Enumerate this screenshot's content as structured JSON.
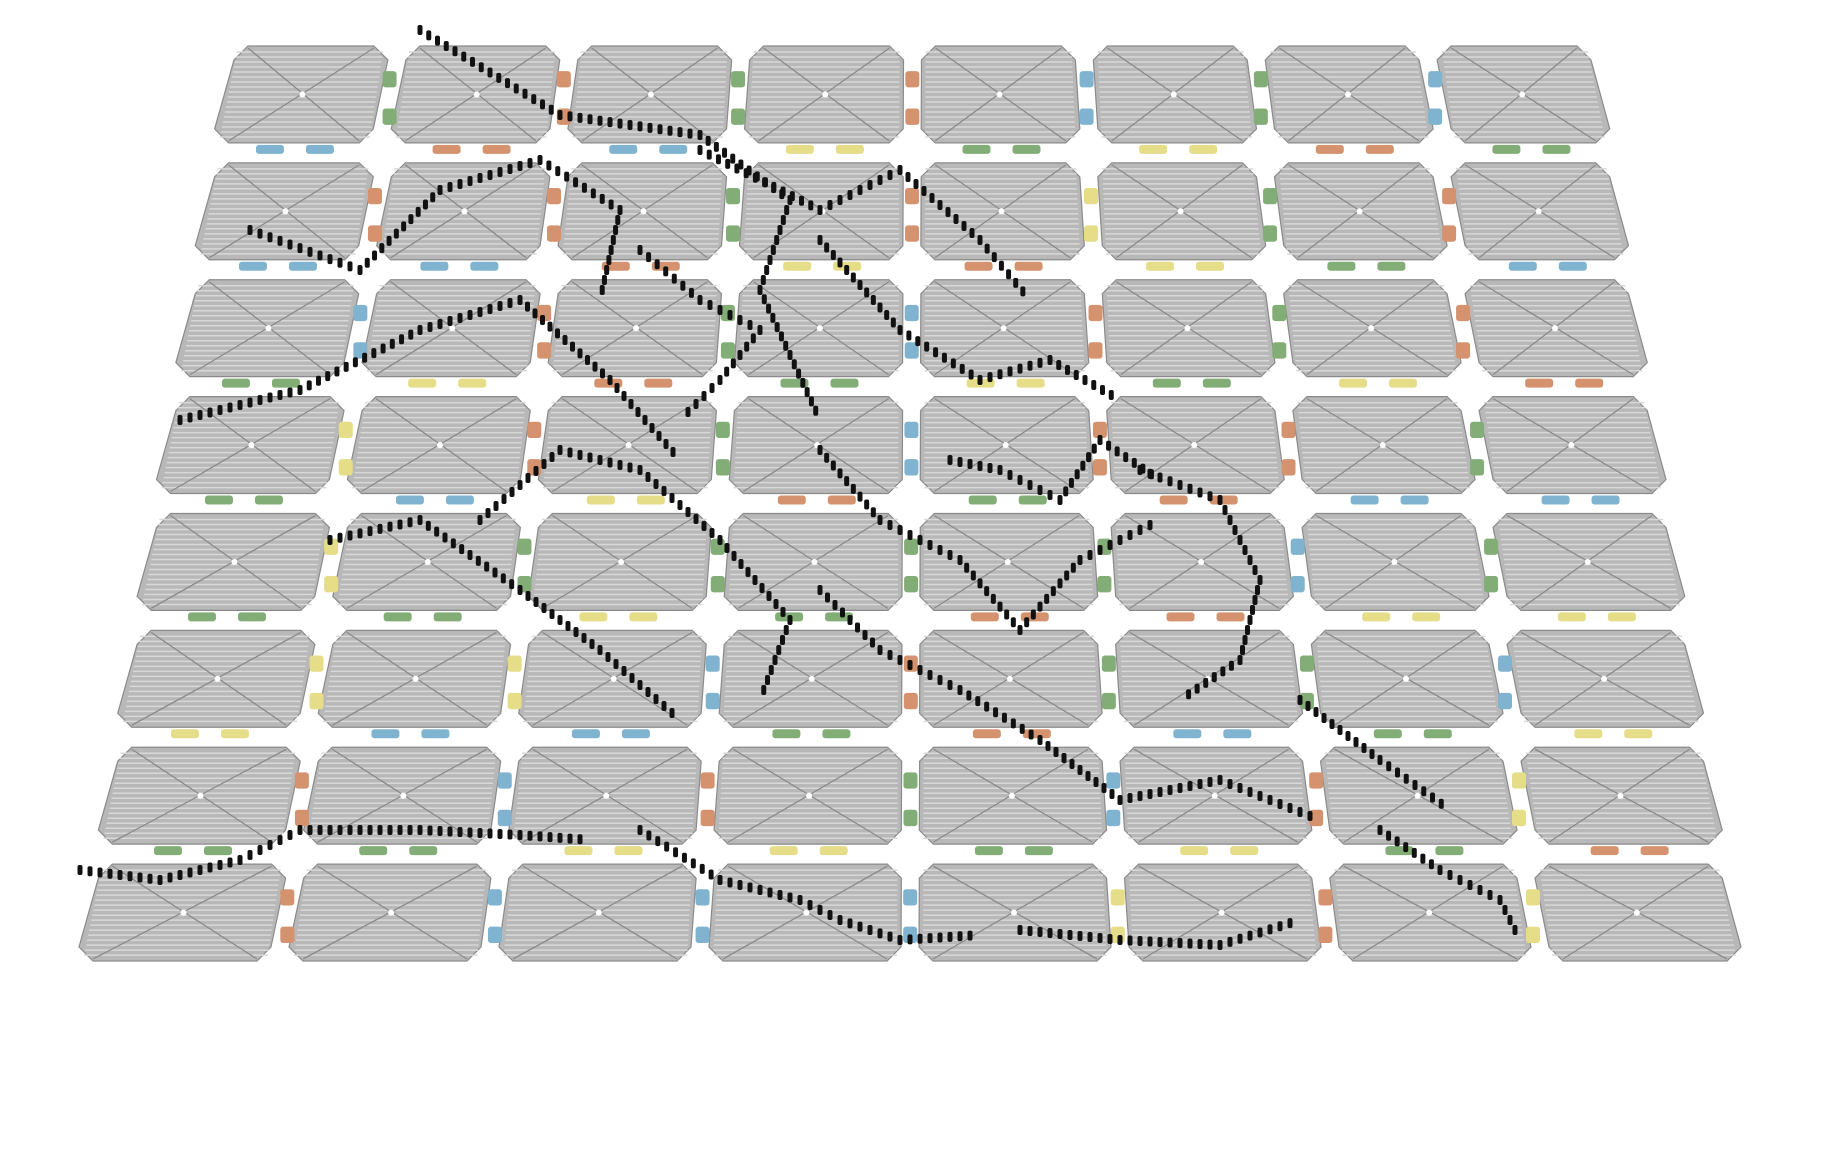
{
  "figure": {
    "type": "dna-origami-tile-array",
    "rows": 8,
    "columns": 8,
    "tile_fill": "#b8b8b8",
    "helix_line": "#d8d8d8",
    "helix_shadow": "#8a8a8a",
    "drawing_color": "#111111",
    "linker_colors": {
      "orange": "#d4926e",
      "green": "#83ad76",
      "blue": "#7fb3cf",
      "yellow": "#e6dd88"
    },
    "drawing_description_visible": false
  }
}
